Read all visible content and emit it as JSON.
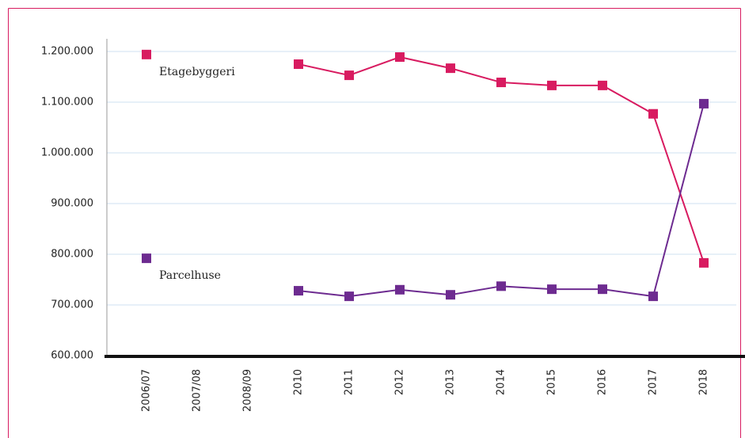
{
  "chart_data": {
    "type": "line",
    "categories": [
      "2006/07",
      "2007/08",
      "2008/09",
      "2010",
      "2011",
      "2012",
      "2013",
      "2014",
      "2015",
      "2016",
      "2017",
      "2018"
    ],
    "series": [
      {
        "name": "Etagebyggeri",
        "color": "#d81b60",
        "values": [
          1194000,
          null,
          null,
          1175000,
          1153000,
          1189000,
          1167000,
          1139000,
          1133000,
          1133000,
          1077000,
          783000
        ]
      },
      {
        "name": "Parcelhuse",
        "color": "#6d2b90",
        "values": [
          792000,
          null,
          null,
          728000,
          717000,
          730000,
          720000,
          737000,
          731000,
          731000,
          717000,
          1097000
        ]
      }
    ],
    "ylim": [
      600000,
      1225000
    ],
    "yticks": [
      {
        "value": 600000,
        "label": "600.000"
      },
      {
        "value": 700000,
        "label": "700.000"
      },
      {
        "value": 800000,
        "label": "800.000"
      },
      {
        "value": 900000,
        "label": "900.000"
      },
      {
        "value": 1000000,
        "label": "1.000.000"
      },
      {
        "value": 1100000,
        "label": "1.100.000"
      },
      {
        "value": 1200000,
        "label": "1.200.000"
      }
    ],
    "grid": true
  }
}
